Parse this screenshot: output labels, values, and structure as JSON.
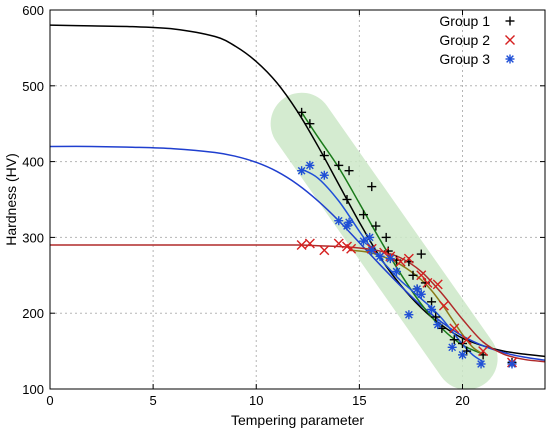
{
  "chart_data": {
    "type": "scatter",
    "xlabel": "Tempering parameter",
    "ylabel": "Hardness (HV)",
    "xlim": [
      0,
      24
    ],
    "ylim": [
      100,
      600
    ],
    "xticks": [
      0,
      5,
      10,
      15,
      20
    ],
    "yticks": [
      100,
      200,
      300,
      400,
      500,
      600
    ],
    "grid": true,
    "legend_position": "top-right",
    "highlight_band": {
      "color": "#cde8c8",
      "from": [
        12.2,
        450
      ],
      "to": [
        20.2,
        140
      ]
    },
    "series": [
      {
        "name": "Group 1",
        "marker": "plus",
        "color": "#000000",
        "points": [
          [
            12.2,
            465
          ],
          [
            12.6,
            450
          ],
          [
            13.3,
            408
          ],
          [
            14.0,
            395
          ],
          [
            14.4,
            350
          ],
          [
            14.5,
            388
          ],
          [
            15.2,
            330
          ],
          [
            15.6,
            367
          ],
          [
            15.8,
            315
          ],
          [
            16.3,
            300
          ],
          [
            16.4,
            282
          ],
          [
            16.8,
            270
          ],
          [
            17.4,
            268
          ],
          [
            17.6,
            250
          ],
          [
            17.8,
            232
          ],
          [
            18.0,
            278
          ],
          [
            18.2,
            240
          ],
          [
            18.5,
            215
          ],
          [
            18.7,
            195
          ],
          [
            19.0,
            180
          ],
          [
            19.6,
            165
          ],
          [
            20.0,
            160
          ],
          [
            20.2,
            150
          ],
          [
            21.0,
            145
          ],
          [
            22.4,
            135
          ]
        ]
      },
      {
        "name": "Group 2",
        "marker": "x",
        "color": "#d62020",
        "points": [
          [
            12.2,
            290
          ],
          [
            12.6,
            292
          ],
          [
            13.3,
            283
          ],
          [
            14.0,
            292
          ],
          [
            14.4,
            288
          ],
          [
            14.6,
            285
          ],
          [
            15.6,
            285
          ],
          [
            16.2,
            280
          ],
          [
            16.5,
            275
          ],
          [
            17.0,
            268
          ],
          [
            17.4,
            272
          ],
          [
            18.0,
            250
          ],
          [
            18.3,
            240
          ],
          [
            18.8,
            238
          ],
          [
            19.1,
            210
          ],
          [
            19.6,
            180
          ],
          [
            20.2,
            165
          ],
          [
            21.0,
            150
          ],
          [
            22.4,
            135
          ]
        ]
      },
      {
        "name": "Group 3",
        "marker": "star",
        "color": "#1f4fd6",
        "points": [
          [
            12.2,
            388
          ],
          [
            12.6,
            395
          ],
          [
            13.3,
            382
          ],
          [
            14.0,
            322
          ],
          [
            14.4,
            315
          ],
          [
            14.5,
            320
          ],
          [
            15.2,
            295
          ],
          [
            15.5,
            300
          ],
          [
            15.6,
            283
          ],
          [
            16.0,
            275
          ],
          [
            16.5,
            272
          ],
          [
            16.8,
            255
          ],
          [
            17.4,
            198
          ],
          [
            17.8,
            232
          ],
          [
            18.0,
            225
          ],
          [
            18.5,
            205
          ],
          [
            18.8,
            185
          ],
          [
            19.5,
            155
          ],
          [
            20.0,
            145
          ],
          [
            20.9,
            133
          ],
          [
            22.4,
            133
          ]
        ]
      }
    ],
    "curves": [
      {
        "color": "#000000",
        "x": [
          0,
          2,
          4,
          6,
          8,
          9,
          10,
          11,
          12,
          13,
          14,
          15,
          16,
          17,
          18,
          19,
          20,
          21,
          22,
          23,
          24
        ],
        "y": [
          580,
          579,
          578,
          575,
          565,
          552,
          532,
          504,
          466,
          420,
          370,
          320,
          274,
          237,
          207,
          184,
          167,
          157,
          150,
          146,
          143
        ]
      },
      {
        "color": "#1f3fcf",
        "x": [
          0,
          2,
          4,
          6,
          8,
          9,
          10,
          11,
          12,
          13,
          14,
          15,
          16,
          17,
          18,
          19,
          20,
          21,
          22,
          23,
          24
        ],
        "y": [
          420,
          420,
          419,
          417,
          412,
          407,
          399,
          387,
          370,
          348,
          322,
          293,
          264,
          236,
          210,
          188,
          170,
          157,
          148,
          142,
          138
        ]
      },
      {
        "color": "#b02a2a",
        "x": [
          0,
          2,
          4,
          6,
          8,
          10,
          12,
          13,
          14,
          15,
          16,
          17,
          18,
          19,
          20,
          21,
          22,
          23,
          24
        ],
        "y": [
          290,
          290,
          290,
          290,
          290,
          290,
          290,
          289,
          288,
          286,
          282,
          273,
          255,
          226,
          192,
          162,
          146,
          139,
          136
        ]
      },
      {
        "color": "#1a7a1a",
        "x": [
          12.2,
          13,
          14,
          15,
          16,
          17,
          18,
          19,
          20,
          21
        ],
        "y": [
          465,
          432,
          392,
          345,
          297,
          252,
          212,
          180,
          158,
          146
        ]
      },
      {
        "color": "#8a7a1a",
        "x": [
          14.5,
          15,
          15.5,
          16,
          16.5,
          17,
          17.5,
          18,
          18.5,
          19,
          19.5,
          20,
          20.5,
          21
        ],
        "y": [
          283,
          282,
          280,
          276,
          271,
          264,
          255,
          244,
          230,
          212,
          192,
          172,
          155,
          146
        ]
      },
      {
        "color": "#2050d8",
        "x": [
          12.2,
          13,
          14,
          15,
          15.5,
          16,
          16.5,
          17,
          17.5,
          18,
          18.5,
          19,
          19.5,
          20,
          20.5,
          21
        ],
        "y": [
          390,
          378,
          348,
          308,
          289,
          272,
          257,
          243,
          231,
          219,
          207,
          193,
          176,
          159,
          145,
          136
        ]
      }
    ]
  }
}
